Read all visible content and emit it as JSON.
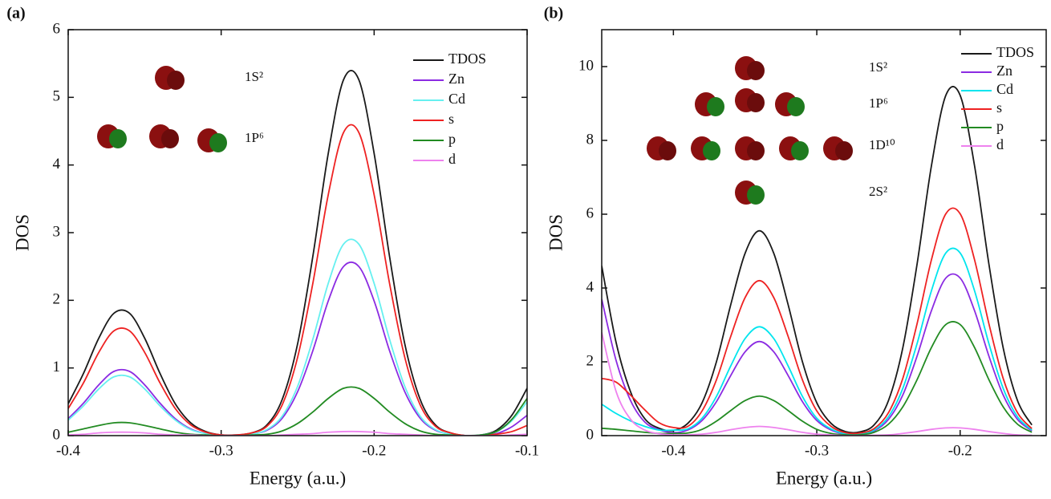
{
  "chart_data": [
    {
      "type": "line",
      "panel_label": "(a)",
      "xlabel": "Energy (a.u.)",
      "ylabel": "DOS",
      "annotations": [
        "1S²",
        "1P⁶"
      ],
      "x": [
        -0.4,
        -0.39,
        -0.38,
        -0.37,
        -0.36,
        -0.35,
        -0.34,
        -0.33,
        -0.32,
        -0.31,
        -0.3,
        -0.29,
        -0.28,
        -0.27,
        -0.26,
        -0.25,
        -0.24,
        -0.23,
        -0.22,
        -0.21,
        -0.2,
        -0.19,
        -0.18,
        -0.17,
        -0.16,
        -0.15,
        -0.14,
        -0.13,
        -0.12,
        -0.11,
        -0.1
      ],
      "xlim": [
        -0.4,
        -0.1
      ],
      "ylim": [
        0,
        6
      ],
      "xticks": [
        -0.4,
        -0.3,
        -0.2,
        -0.1
      ],
      "yticks": [
        0,
        1,
        2,
        3,
        4,
        5,
        6
      ],
      "series": [
        {
          "name": "TDOS",
          "color": "#1a1a1a",
          "values": [
            0.47,
            0.92,
            1.44,
            1.81,
            1.81,
            1.44,
            0.92,
            0.47,
            0.19,
            0.06,
            0.01,
            0.01,
            0.04,
            0.16,
            0.54,
            1.36,
            2.66,
            4.17,
            5.26,
            5.26,
            4.17,
            2.66,
            1.36,
            0.54,
            0.16,
            0.04,
            0,
            0.01,
            0.08,
            0.3,
            0.7
          ]
        },
        {
          "name": "Zn",
          "color": "#8b2be2",
          "values": [
            0.25,
            0.48,
            0.75,
            0.95,
            0.95,
            0.75,
            0.48,
            0.25,
            0.1,
            0.03,
            0.01,
            0,
            0.02,
            0.08,
            0.26,
            0.65,
            1.26,
            1.99,
            2.5,
            2.5,
            1.99,
            1.26,
            0.65,
            0.26,
            0.08,
            0.02,
            0,
            0,
            0.03,
            0.13,
            0.3
          ]
        },
        {
          "name": "Cd",
          "color": "#66f0f0",
          "values": [
            0.23,
            0.44,
            0.69,
            0.87,
            0.87,
            0.69,
            0.44,
            0.23,
            0.09,
            0.03,
            0.01,
            0.01,
            0.02,
            0.09,
            0.29,
            0.73,
            1.43,
            2.25,
            2.83,
            2.83,
            2.25,
            1.43,
            0.73,
            0.29,
            0.09,
            0.02,
            0,
            0.01,
            0.06,
            0.22,
            0.5
          ]
        },
        {
          "name": "s",
          "color": "#ee2222",
          "values": [
            0.4,
            0.78,
            1.23,
            1.55,
            1.55,
            1.23,
            0.78,
            0.4,
            0.16,
            0.05,
            0.01,
            0.01,
            0.04,
            0.14,
            0.46,
            1.16,
            2.26,
            3.56,
            4.48,
            4.48,
            3.56,
            2.26,
            1.16,
            0.46,
            0.14,
            0.04,
            0,
            0,
            0.02,
            0.06,
            0.15
          ]
        },
        {
          "name": "p",
          "color": "#228b22",
          "values": [
            0.05,
            0.1,
            0.15,
            0.19,
            0.19,
            0.15,
            0.1,
            0.05,
            0.02,
            0.01,
            0,
            0,
            0.01,
            0.02,
            0.07,
            0.18,
            0.35,
            0.55,
            0.7,
            0.7,
            0.55,
            0.35,
            0.18,
            0.07,
            0.02,
            0.01,
            0,
            0.01,
            0.06,
            0.24,
            0.55
          ]
        },
        {
          "name": "d",
          "color": "#ee82ee",
          "values": [
            0.01,
            0.02,
            0.04,
            0.05,
            0.05,
            0.04,
            0.02,
            0.01,
            0.01,
            0,
            0,
            0,
            0,
            0,
            0.01,
            0.02,
            0.03,
            0.05,
            0.06,
            0.06,
            0.05,
            0.03,
            0.02,
            0.01,
            0,
            0,
            0,
            0,
            0,
            0.01,
            0.02
          ]
        }
      ]
    },
    {
      "type": "line",
      "panel_label": "(b)",
      "xlabel": "Energy (a.u.)",
      "ylabel": "DOS",
      "annotations": [
        "1S²",
        "1P⁶",
        "1D¹⁰",
        "2S²"
      ],
      "x": [
        -0.45,
        -0.44,
        -0.43,
        -0.42,
        -0.41,
        -0.4,
        -0.39,
        -0.38,
        -0.37,
        -0.36,
        -0.35,
        -0.34,
        -0.33,
        -0.32,
        -0.31,
        -0.3,
        -0.29,
        -0.28,
        -0.27,
        -0.26,
        -0.25,
        -0.24,
        -0.23,
        -0.22,
        -0.21,
        -0.2,
        -0.19,
        -0.18,
        -0.17,
        -0.16,
        -0.15
      ],
      "xlim": [
        -0.45,
        -0.14
      ],
      "ylim": [
        0,
        11
      ],
      "xticks": [
        -0.4,
        -0.3,
        -0.2
      ],
      "yticks": [
        0,
        2,
        4,
        6,
        8,
        10
      ],
      "series": [
        {
          "name": "TDOS",
          "color": "#1a1a1a",
          "values": [
            4.6,
            2.53,
            1.2,
            0.46,
            0.2,
            0.14,
            0.33,
            0.89,
            2.0,
            3.55,
            4.94,
            5.55,
            4.94,
            3.55,
            2.0,
            0.89,
            0.33,
            0.11,
            0.1,
            0.29,
            0.95,
            2.38,
            4.66,
            7.32,
            9.22,
            9.22,
            7.32,
            4.66,
            2.38,
            0.95,
            0.29
          ]
        },
        {
          "name": "Zn",
          "color": "#8b2be2",
          "values": [
            3.7,
            2.04,
            0.96,
            0.37,
            0.16,
            0.08,
            0.15,
            0.41,
            0.92,
            1.63,
            2.27,
            2.55,
            2.27,
            1.63,
            0.92,
            0.41,
            0.15,
            0.04,
            0.05,
            0.13,
            0.44,
            1.1,
            2.16,
            3.39,
            4.27,
            4.27,
            3.39,
            2.16,
            1.1,
            0.44,
            0.13
          ]
        },
        {
          "name": "Cd",
          "color": "#00e5ee",
          "values": [
            0.85,
            0.6,
            0.4,
            0.25,
            0.15,
            0.15,
            0.18,
            0.47,
            1.06,
            1.89,
            2.63,
            2.95,
            2.63,
            1.89,
            1.06,
            0.47,
            0.18,
            0.05,
            0.05,
            0.15,
            0.51,
            1.28,
            2.5,
            3.93,
            4.95,
            4.95,
            3.93,
            2.5,
            1.28,
            0.51,
            0.15
          ]
        },
        {
          "name": "s",
          "color": "#ee2222",
          "values": [
            1.55,
            1.45,
            1.1,
            0.7,
            0.35,
            0.22,
            0.25,
            0.67,
            1.51,
            2.69,
            3.74,
            4.2,
            3.74,
            2.69,
            1.51,
            0.67,
            0.25,
            0.08,
            0.07,
            0.19,
            0.62,
            1.55,
            3.04,
            4.77,
            6.01,
            6.01,
            4.77,
            3.04,
            1.55,
            0.62,
            0.19
          ]
        },
        {
          "name": "p",
          "color": "#228b22",
          "values": [
            0.2,
            0.17,
            0.13,
            0.09,
            0.06,
            0.06,
            0.07,
            0.17,
            0.39,
            0.68,
            0.95,
            1.07,
            0.95,
            0.68,
            0.39,
            0.17,
            0.06,
            0.02,
            0.02,
            0.09,
            0.31,
            0.78,
            1.52,
            2.39,
            3.01,
            3.01,
            2.39,
            1.52,
            0.78,
            0.31,
            0.09
          ]
        },
        {
          "name": "d",
          "color": "#ee82ee",
          "values": [
            2.8,
            1.2,
            0.45,
            0.15,
            0.05,
            0.02,
            0.02,
            0.04,
            0.09,
            0.16,
            0.22,
            0.25,
            0.22,
            0.16,
            0.09,
            0.04,
            0.02,
            0,
            0,
            0.01,
            0.02,
            0.06,
            0.11,
            0.17,
            0.21,
            0.21,
            0.17,
            0.11,
            0.06,
            0.02,
            0.01
          ]
        }
      ]
    }
  ]
}
